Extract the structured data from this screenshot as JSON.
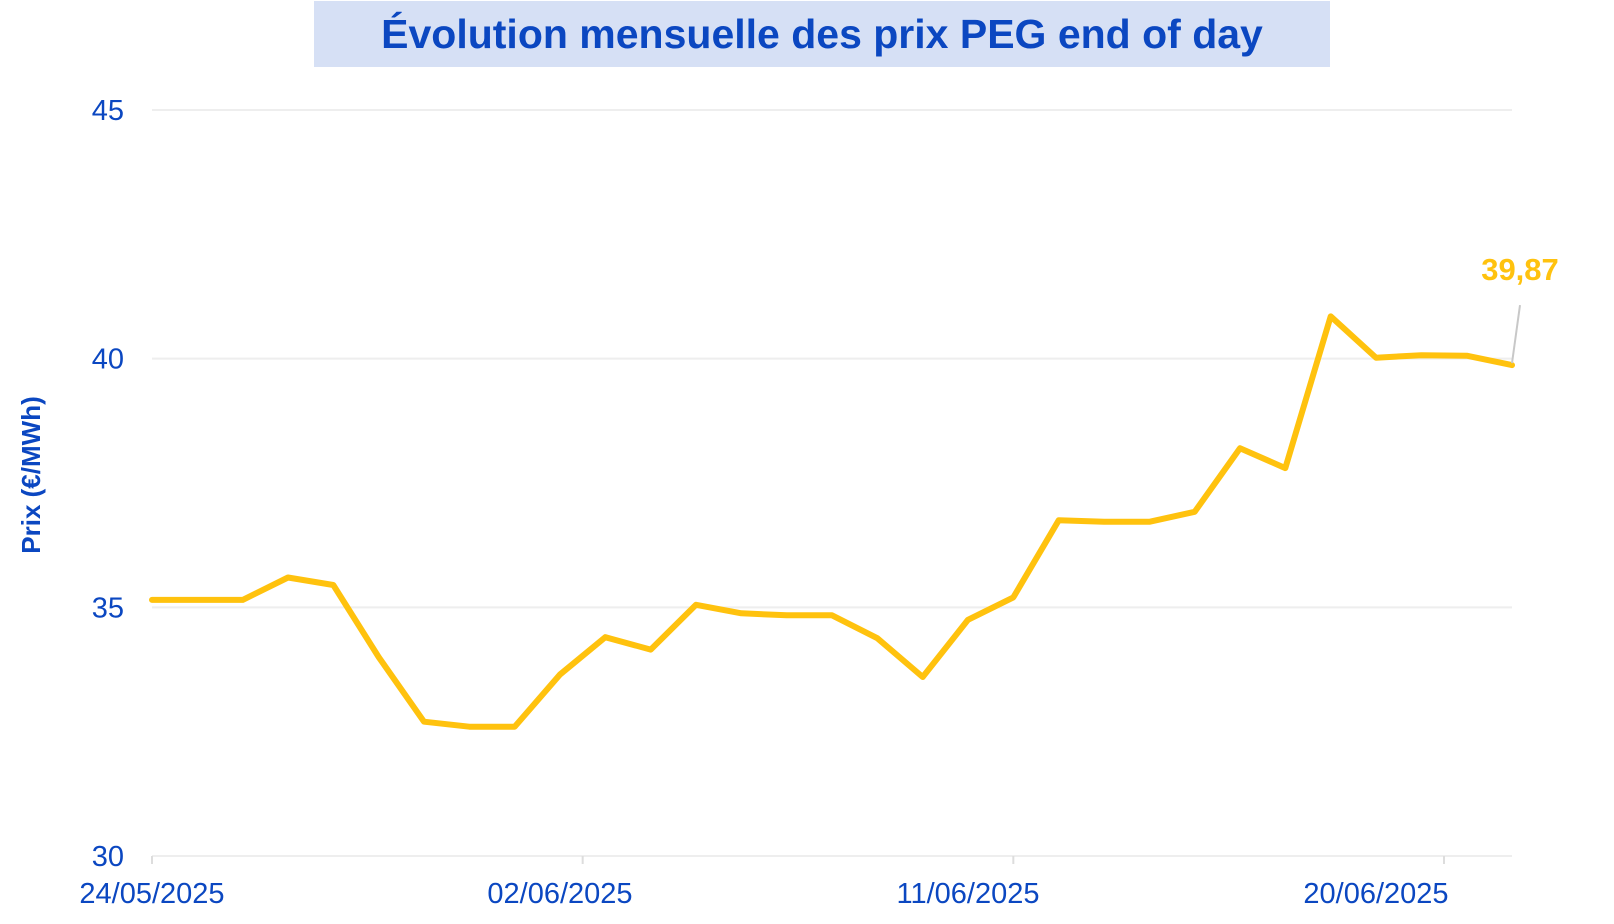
{
  "chart_data": {
    "type": "line",
    "title": "Évolution mensuelle des prix PEG end of day",
    "xlabel": "",
    "ylabel": "Prix (€/MWh)",
    "ylim": [
      30,
      45
    ],
    "yticks": [
      "30",
      "35",
      "40",
      "45"
    ],
    "ytick_values": [
      30,
      35,
      40,
      45
    ],
    "xticks": [
      "24/05/2025",
      "02/06/2025",
      "11/06/2025",
      "20/06/2025"
    ],
    "xtick_days": [
      0,
      9,
      18,
      27
    ],
    "x_days": [
      0,
      1,
      2,
      3,
      4,
      5,
      6,
      7,
      8,
      9,
      10,
      11,
      12,
      13,
      14,
      15,
      16,
      17,
      18,
      19,
      20,
      21,
      22,
      23,
      24,
      25,
      26,
      27,
      28,
      29,
      30
    ],
    "series": [
      {
        "name": "PEG end of day",
        "color": "#ffc20e",
        "values": [
          35.15,
          35.15,
          35.15,
          35.6,
          35.45,
          34.0,
          32.7,
          32.6,
          32.6,
          33.65,
          34.4,
          34.15,
          35.05,
          34.88,
          34.84,
          34.84,
          34.38,
          33.6,
          34.75,
          35.2,
          36.75,
          36.72,
          36.72,
          36.92,
          38.2,
          37.8,
          40.85,
          40.02,
          40.07,
          40.06,
          39.87
        ]
      }
    ],
    "last_value_label": "39,87",
    "grid": true
  }
}
